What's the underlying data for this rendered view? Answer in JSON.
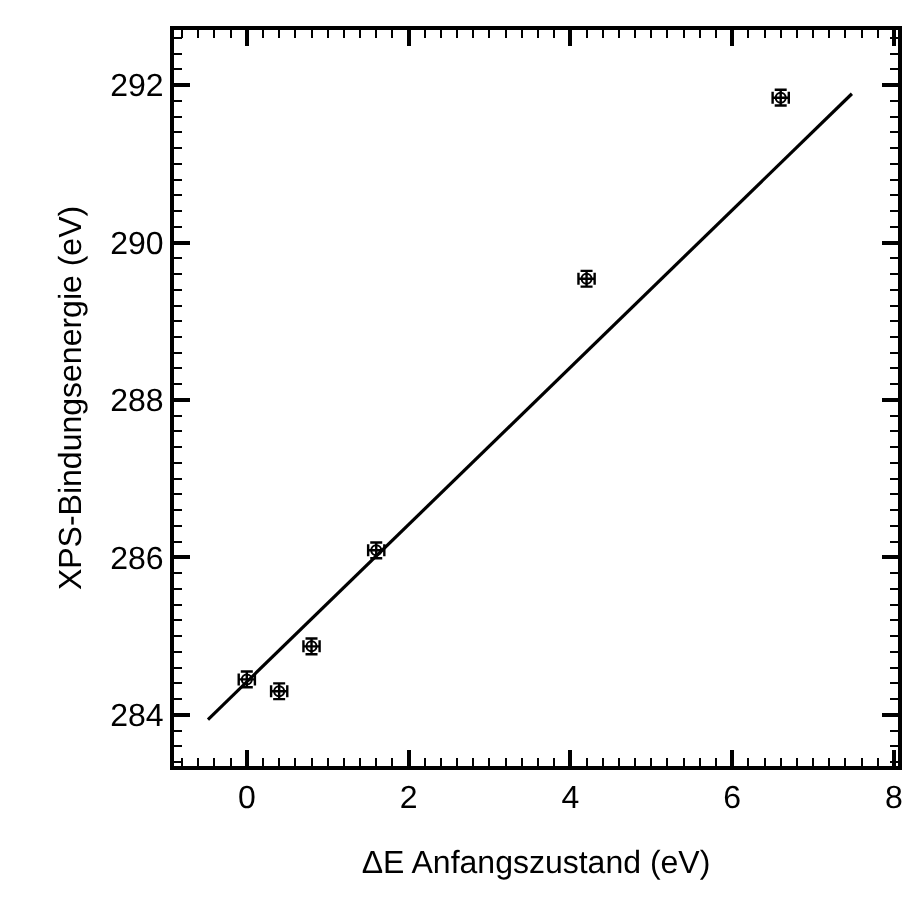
{
  "chart_data": {
    "type": "scatter",
    "xlabel": "ΔE Anfangszustand (eV)",
    "ylabel": "XPS-Bindungsenergie (eV)",
    "xlim": [
      -0.9,
      8.05
    ],
    "xticks": [
      0,
      2,
      4,
      6,
      8
    ],
    "ylim": [
      283.35,
      292.7
    ],
    "yticks": [
      284,
      286,
      288,
      290,
      292
    ],
    "marker": "circle",
    "series": [
      {
        "color": "#000000",
        "x": [
          0,
          0.4,
          0.8,
          1.6,
          4.2,
          6.6
        ],
        "values": [
          284.45,
          284.3,
          284.87,
          286.09,
          289.54,
          291.84
        ],
        "errors": [
          0.1,
          0.1,
          0.1,
          0.1,
          0.1,
          0.1
        ],
        "xerrors": [
          0.1,
          0.1,
          0.1,
          0.1,
          0.1,
          0.1
        ]
      },
      {
        "type": "line",
        "color": "#000000",
        "line_style": "solid",
        "marker": "none",
        "x": [
          -0.48,
          7.48
        ],
        "values": [
          283.94,
          291.89
        ]
      }
    ]
  }
}
